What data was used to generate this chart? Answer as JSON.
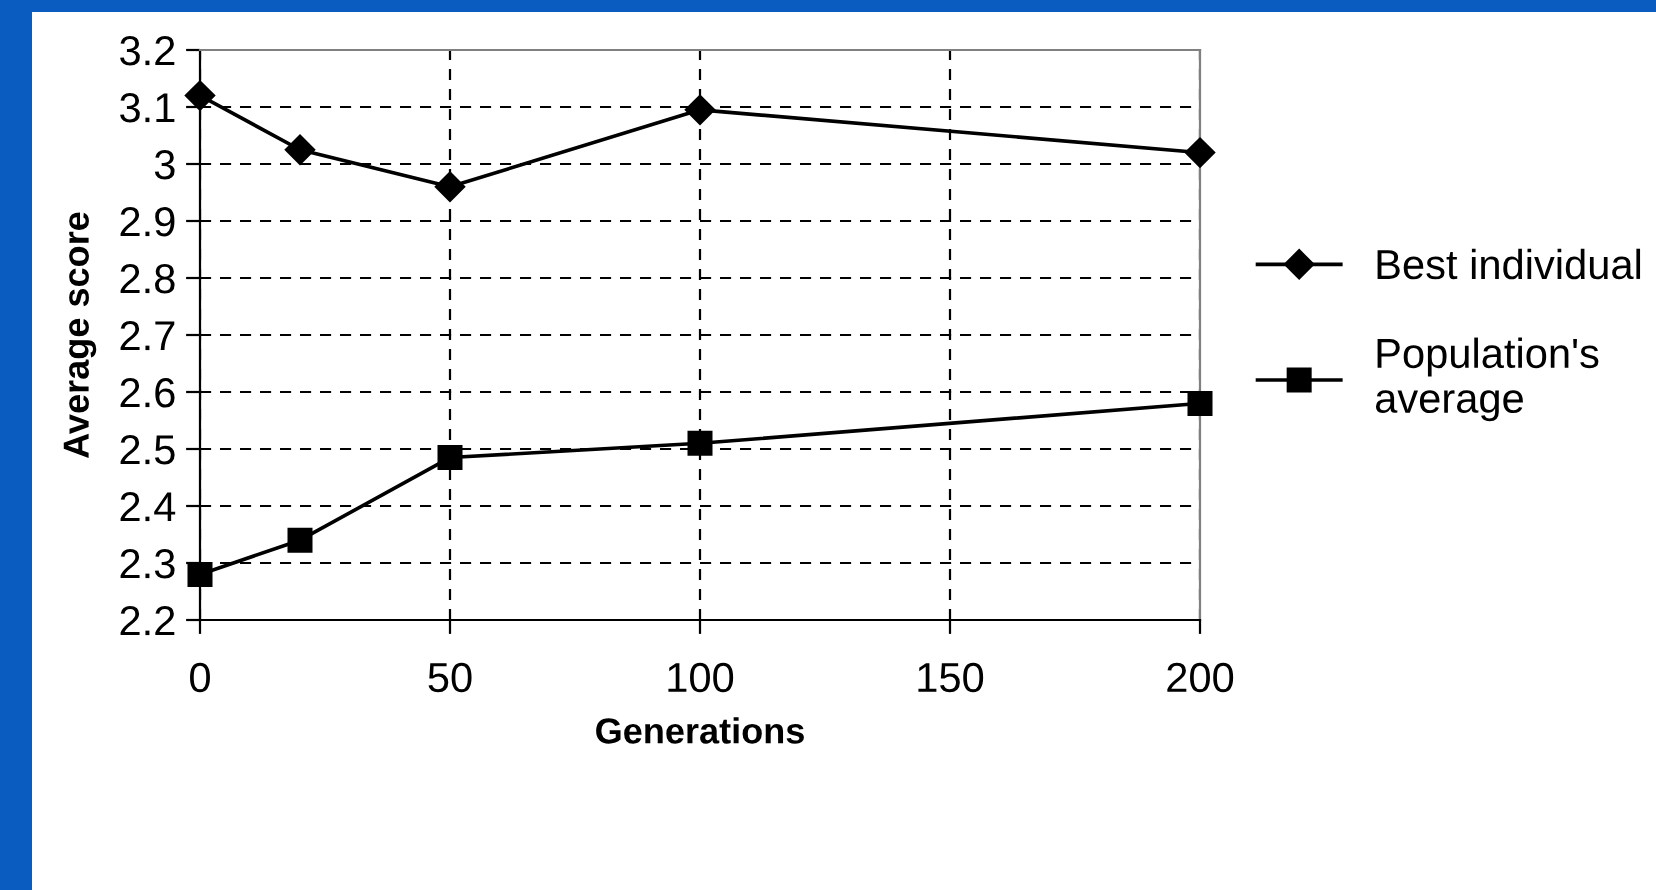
{
  "chart_data": {
    "type": "line",
    "xlabel": "Generations",
    "ylabel": "Average score",
    "series": [
      {
        "name": "Best individual",
        "color": "#000000",
        "marker": "diamond",
        "x": [
          0,
          20,
          50,
          100,
          200
        ],
        "values": [
          3.12,
          3.025,
          2.96,
          3.095,
          3.02
        ]
      },
      {
        "name": "Population's\naverage",
        "color": "#000000",
        "marker": "square",
        "x": [
          0,
          20,
          50,
          100,
          200
        ],
        "values": [
          2.28,
          2.34,
          2.485,
          2.51,
          2.58
        ]
      }
    ],
    "xlim": [
      0,
      200
    ],
    "xticks": [
      0,
      50,
      100,
      150,
      200
    ],
    "ylim": [
      2.2,
      3.2
    ],
    "yticks": [
      2.2,
      2.3,
      2.4,
      2.5,
      2.6,
      2.7,
      2.8,
      2.9,
      3,
      3.1,
      3.2
    ],
    "grid": true,
    "legend": "right",
    "line_style": "solid"
  }
}
